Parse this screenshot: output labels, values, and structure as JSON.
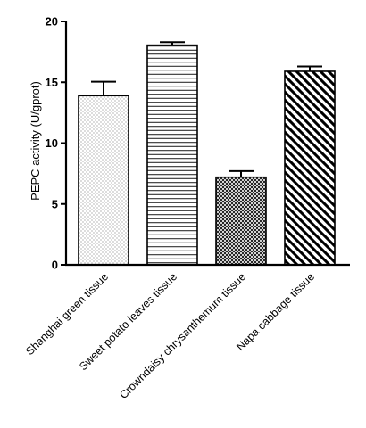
{
  "chart_data": {
    "type": "bar",
    "title": "",
    "xlabel": "",
    "ylabel": "PEPC activity (U/gprot)",
    "ylim": [
      0,
      20
    ],
    "yticks": [
      0,
      5,
      10,
      15,
      20
    ],
    "grid": false,
    "categories": [
      "Shanghai green tissue",
      "Sweet potato leaves tissue",
      "Crowndaisy chrysanthemum tissue",
      "Napa cabbage tissue"
    ],
    "values": [
      13.9,
      18.05,
      7.2,
      15.9
    ],
    "errors": [
      1.15,
      0.25,
      0.5,
      0.4
    ],
    "patterns": [
      "dots",
      "horizontal-lines",
      "crosshatch",
      "diagonal-stripes"
    ],
    "bar_edge_color": "#000000",
    "bar_fill_color": "#ffffff"
  }
}
